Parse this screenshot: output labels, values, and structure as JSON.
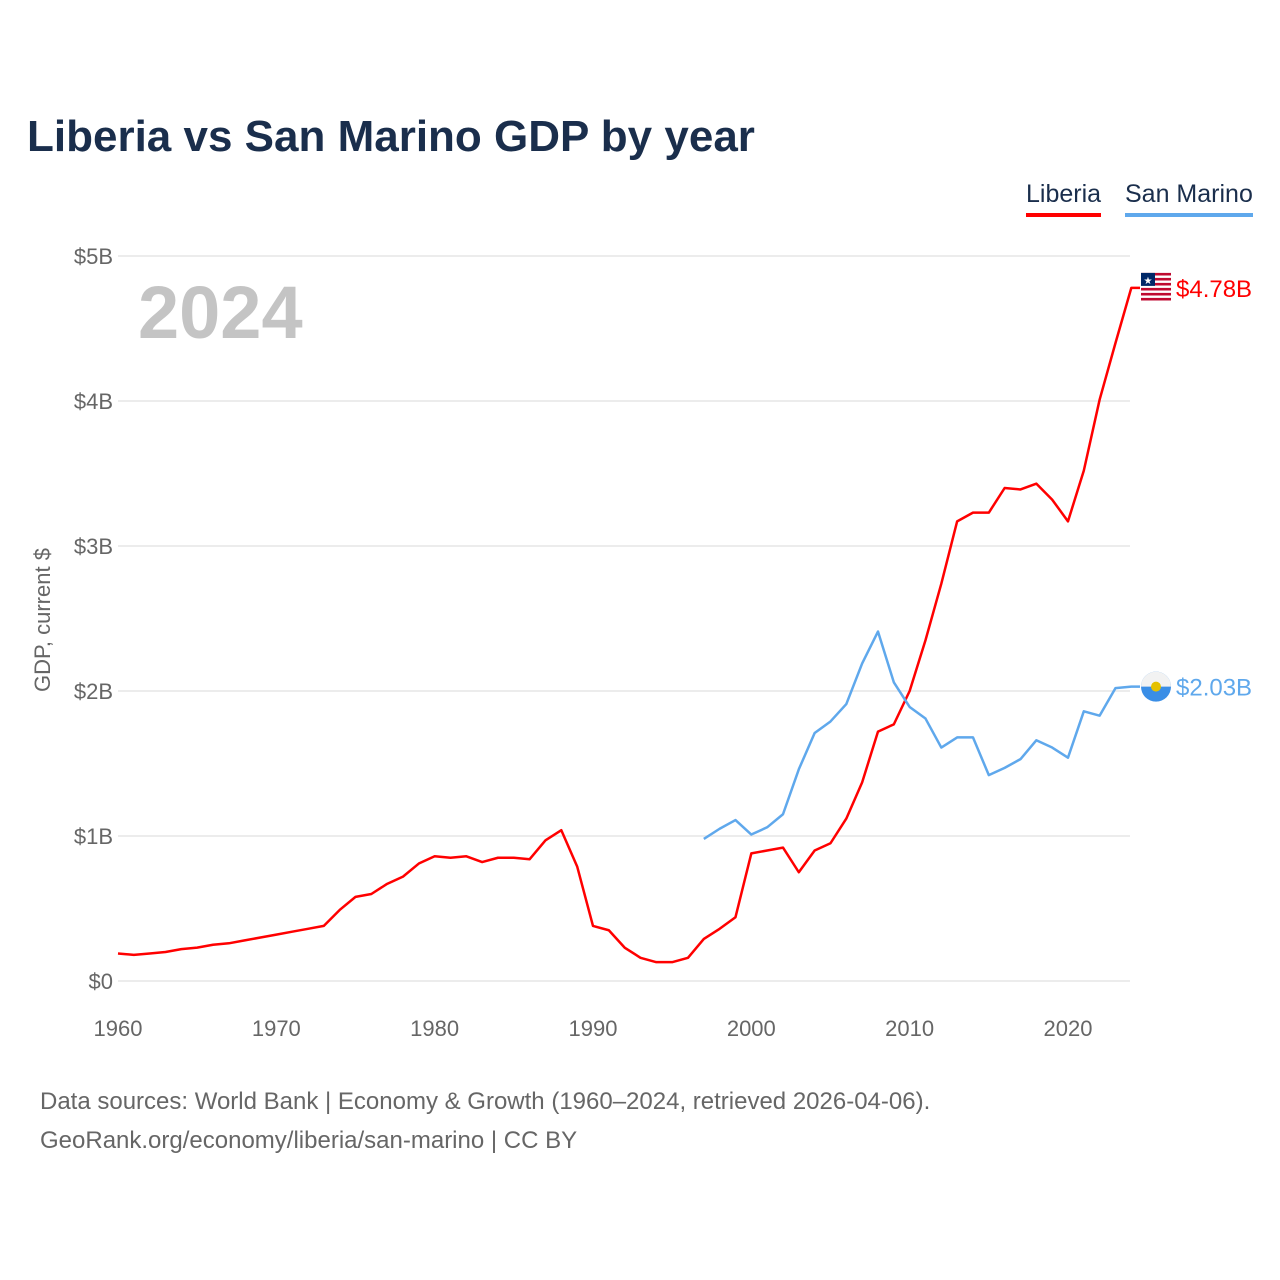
{
  "chart_data": {
    "type": "line",
    "title": "Liberia vs San Marino GDP by year",
    "ylabel": "GDP, current $",
    "xlabel": "",
    "year_watermark": "2024",
    "xlim": [
      1960,
      2024
    ],
    "ylim": [
      0,
      5
    ],
    "y_ticks": [
      {
        "v": 0,
        "label": "$0"
      },
      {
        "v": 1,
        "label": "$1B"
      },
      {
        "v": 2,
        "label": "$2B"
      },
      {
        "v": 3,
        "label": "$3B"
      },
      {
        "v": 4,
        "label": "$4B"
      },
      {
        "v": 5,
        "label": "$5B"
      }
    ],
    "x_ticks": [
      {
        "v": 1960,
        "label": "1960"
      },
      {
        "v": 1970,
        "label": "1970"
      },
      {
        "v": 1980,
        "label": "1980"
      },
      {
        "v": 1990,
        "label": "1990"
      },
      {
        "v": 2000,
        "label": "2000"
      },
      {
        "v": 2010,
        "label": "2010"
      },
      {
        "v": 2020,
        "label": "2020"
      }
    ],
    "grid": true,
    "legend_position": "top-right",
    "series": [
      {
        "name": "Liberia",
        "color": "#ff0000",
        "end_label": "$4.78B",
        "flag": "liberia-flag",
        "x": [
          1960,
          1961,
          1962,
          1963,
          1964,
          1965,
          1966,
          1967,
          1968,
          1969,
          1970,
          1971,
          1972,
          1973,
          1974,
          1975,
          1976,
          1977,
          1978,
          1979,
          1980,
          1981,
          1982,
          1983,
          1984,
          1985,
          1986,
          1987,
          1988,
          1989,
          1990,
          1991,
          1992,
          1993,
          1994,
          1995,
          1996,
          1997,
          1998,
          1999,
          2000,
          2001,
          2002,
          2003,
          2004,
          2005,
          2006,
          2007,
          2008,
          2009,
          2010,
          2011,
          2012,
          2013,
          2014,
          2015,
          2016,
          2017,
          2018,
          2019,
          2020,
          2021,
          2022,
          2023,
          2024
        ],
        "values": [
          0.19,
          0.18,
          0.19,
          0.2,
          0.22,
          0.23,
          0.25,
          0.26,
          0.28,
          0.3,
          0.32,
          0.34,
          0.36,
          0.38,
          0.49,
          0.58,
          0.6,
          0.67,
          0.72,
          0.81,
          0.86,
          0.85,
          0.86,
          0.82,
          0.85,
          0.85,
          0.84,
          0.97,
          1.04,
          0.79,
          0.38,
          0.35,
          0.23,
          0.16,
          0.13,
          0.13,
          0.16,
          0.29,
          0.36,
          0.44,
          0.88,
          0.9,
          0.92,
          0.75,
          0.9,
          0.95,
          1.12,
          1.37,
          1.72,
          1.77,
          2.0,
          2.35,
          2.74,
          3.17,
          3.23,
          3.23,
          3.4,
          3.39,
          3.43,
          3.32,
          3.17,
          3.52,
          4.01,
          4.4,
          4.78
        ]
      },
      {
        "name": "San Marino",
        "color": "#5fa8ec",
        "end_label": "$2.03B",
        "flag": "san-marino-flag",
        "x": [
          1997,
          1998,
          1999,
          2000,
          2001,
          2002,
          2003,
          2004,
          2005,
          2006,
          2007,
          2008,
          2009,
          2010,
          2011,
          2012,
          2013,
          2014,
          2015,
          2016,
          2017,
          2018,
          2019,
          2020,
          2021,
          2022,
          2023,
          2024
        ],
        "values": [
          0.98,
          1.05,
          1.11,
          1.01,
          1.06,
          1.15,
          1.46,
          1.71,
          1.79,
          1.91,
          2.19,
          2.41,
          2.06,
          1.89,
          1.81,
          1.61,
          1.68,
          1.68,
          1.42,
          1.47,
          1.53,
          1.66,
          1.61,
          1.54,
          1.86,
          1.83,
          2.02,
          2.03
        ]
      }
    ]
  },
  "footer": {
    "line1": "Data sources: World Bank | Economy & Growth (1960–2024, retrieved 2026-04-06).",
    "line2": "GeoRank.org/economy/liberia/san-marino | CC BY"
  }
}
